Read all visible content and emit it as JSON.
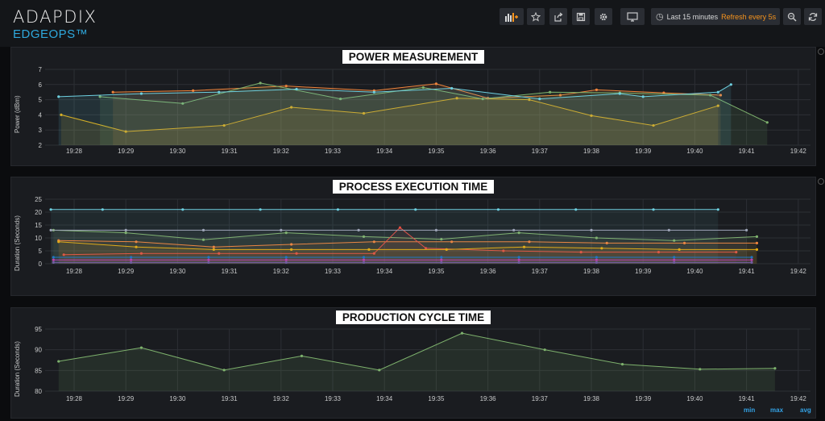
{
  "brand": {
    "name": "ADAPDIX",
    "subtitle": "EDGEOPS™"
  },
  "toolbar": {
    "time_range": "Last 15 minutes",
    "refresh": "Refresh every 5s",
    "icons": [
      "add-panel-icon",
      "star-icon",
      "share-icon",
      "save-icon",
      "gear-icon",
      "monitor-icon",
      "clock-icon",
      "zoom-out-icon",
      "refresh-icon"
    ]
  },
  "x_ticks": [
    "19:28",
    "19:29",
    "19:30",
    "19:31",
    "19:32",
    "19:33",
    "19:34",
    "19:35",
    "19:36",
    "19:37",
    "19:38",
    "19:39",
    "19:40",
    "19:41",
    "19:42"
  ],
  "panels": [
    {
      "title": "POWER MEASUREMENT",
      "ylabel": "Power (dBm)"
    },
    {
      "title": "PROCESS EXECUTION TIME",
      "ylabel": "Duration (Seconds)"
    },
    {
      "title": "PRODUCTION CYCLE TIME",
      "ylabel": "Duration (Seconds)"
    }
  ],
  "legend": {
    "min": "min",
    "max": "max",
    "avg": "avg"
  },
  "chart_data": [
    {
      "type": "line",
      "title": "POWER MEASUREMENT",
      "ylabel": "Power (dBm)",
      "ylim": [
        2,
        7
      ],
      "yticks": [
        2,
        3,
        4,
        5,
        6,
        7
      ],
      "grid": true,
      "series": [
        {
          "color": "#e5ac0e",
          "points": [
            [
              -0.25,
              4.0
            ],
            [
              1.0,
              2.9
            ],
            [
              2.9,
              3.3
            ],
            [
              4.2,
              4.5
            ],
            [
              5.6,
              4.1
            ],
            [
              7.4,
              5.1
            ],
            [
              8.8,
              5.0
            ],
            [
              10.0,
              3.95
            ],
            [
              11.2,
              3.3
            ],
            [
              12.45,
              4.6
            ]
          ]
        },
        {
          "color": "#ef843c",
          "points": [
            [
              0.75,
              5.5
            ],
            [
              2.3,
              5.6
            ],
            [
              4.1,
              5.9
            ],
            [
              5.8,
              5.6
            ],
            [
              7.0,
              6.05
            ],
            [
              8.0,
              5.1
            ],
            [
              9.4,
              5.3
            ],
            [
              10.1,
              5.65
            ],
            [
              11.4,
              5.45
            ],
            [
              12.5,
              5.3
            ]
          ]
        },
        {
          "color": "#7eb26d",
          "points": [
            [
              0.5,
              5.2
            ],
            [
              2.1,
              4.75
            ],
            [
              3.6,
              6.1
            ],
            [
              5.15,
              5.05
            ],
            [
              6.75,
              5.8
            ],
            [
              7.9,
              5.05
            ],
            [
              9.2,
              5.5
            ],
            [
              10.55,
              5.45
            ],
            [
              12.3,
              5.3
            ],
            [
              13.4,
              3.5
            ]
          ]
        },
        {
          "color": "#6ed0e0",
          "points": [
            [
              -0.3,
              5.2
            ],
            [
              1.3,
              5.4
            ],
            [
              2.8,
              5.5
            ],
            [
              4.3,
              5.7
            ],
            [
              5.8,
              5.5
            ],
            [
              7.3,
              5.75
            ],
            [
              9.0,
              5.05
            ],
            [
              10.55,
              5.4
            ],
            [
              11.0,
              5.2
            ],
            [
              12.45,
              5.5
            ],
            [
              12.7,
              6.0
            ]
          ]
        }
      ]
    },
    {
      "type": "line",
      "title": "PROCESS EXECUTION TIME",
      "ylabel": "Duration (Seconds)",
      "ylim": [
        0,
        25
      ],
      "yticks": [
        0,
        5,
        10,
        15,
        20,
        25
      ],
      "grid": true,
      "series": [
        {
          "color": "#6ed0e0",
          "values_x": [
            -0.45,
            0.55,
            2.1,
            3.6,
            5.1,
            6.6,
            8.2,
            9.7,
            11.2,
            12.45
          ],
          "values_y": [
            21,
            21,
            21,
            21,
            21,
            21,
            21,
            21,
            21,
            21
          ]
        },
        {
          "color": "#7eb26d",
          "values_x": [
            -0.4,
            1.0,
            2.5,
            4.1,
            5.6,
            7.1,
            8.6,
            10.1,
            11.6,
            13.2
          ],
          "values_y": [
            13,
            12,
            9.3,
            12,
            10.5,
            9.5,
            12,
            10,
            9,
            10.5
          ]
        },
        {
          "color": "#ef843c",
          "values_x": [
            -0.3,
            1.2,
            2.7,
            4.2,
            5.8,
            7.3,
            8.8,
            10.3,
            11.8,
            13.2
          ],
          "values_y": [
            9,
            8.5,
            6.5,
            7.5,
            8.5,
            8.5,
            8.5,
            8,
            8,
            8
          ]
        },
        {
          "color": "#e24d42",
          "values_x": [
            -0.2,
            1.3,
            2.8,
            4.3,
            5.8,
            6.3,
            6.8,
            8.3,
            9.8,
            11.3,
            12.8
          ],
          "values_y": [
            3.5,
            4,
            4,
            4,
            4,
            14,
            6,
            5,
            4.5,
            4.5,
            4.5
          ]
        },
        {
          "color": "#e5ac0e",
          "values_x": [
            -0.3,
            1.2,
            2.7,
            4.2,
            5.7,
            7.2,
            8.7,
            10.2,
            11.7,
            13.2
          ],
          "values_y": [
            8.5,
            6.5,
            5.5,
            5.5,
            5.5,
            5.5,
            6.5,
            6,
            5.5,
            5.5
          ]
        },
        {
          "color": "#9ea5b8",
          "values_x": [
            -0.45,
            1.0,
            2.5,
            4.0,
            5.5,
            7.0,
            8.5,
            10.0,
            11.5,
            13.0
          ],
          "values_y": [
            13,
            13,
            13,
            13,
            13,
            13,
            13,
            13,
            13,
            13
          ]
        },
        {
          "color": "#1f78c1",
          "values_x": [
            -0.4,
            1.1,
            2.6,
            4.1,
            5.6,
            7.1,
            8.6,
            10.1,
            11.6,
            13.1
          ],
          "values_y": [
            2.5,
            2.5,
            2.5,
            2.5,
            2.5,
            2.5,
            2.5,
            2.5,
            2.5,
            2.5
          ]
        },
        {
          "color": "#ba43a9",
          "values_x": [
            -0.4,
            1.1,
            2.6,
            4.1,
            5.6,
            7.1,
            8.6,
            10.1,
            11.6,
            13.1
          ],
          "values_y": [
            1.5,
            1.5,
            1.5,
            1.5,
            1.5,
            1.5,
            1.5,
            1.5,
            1.5,
            1.5
          ]
        },
        {
          "color": "#705da0",
          "values_x": [
            -0.4,
            1.1,
            2.6,
            4.1,
            5.6,
            7.1,
            8.6,
            10.1,
            11.6,
            13.1
          ],
          "values_y": [
            0.5,
            0.5,
            0.5,
            0.5,
            0.5,
            0.5,
            0.5,
            0.5,
            0.5,
            0.5
          ]
        }
      ]
    },
    {
      "type": "area",
      "title": "PRODUCTION CYCLE TIME",
      "ylabel": "Duration (Seconds)",
      "ylim": [
        80,
        95
      ],
      "yticks": [
        80,
        85,
        90,
        95
      ],
      "grid": true,
      "series": [
        {
          "color": "#7eb26d",
          "x": [
            -0.3,
            1.3,
            2.9,
            4.4,
            5.9,
            7.5,
            9.1,
            10.6,
            12.1,
            13.55
          ],
          "y": [
            87.2,
            90.5,
            85.1,
            88.5,
            85.1,
            94.0,
            90.0,
            86.5,
            85.3,
            85.5
          ]
        }
      ]
    }
  ]
}
